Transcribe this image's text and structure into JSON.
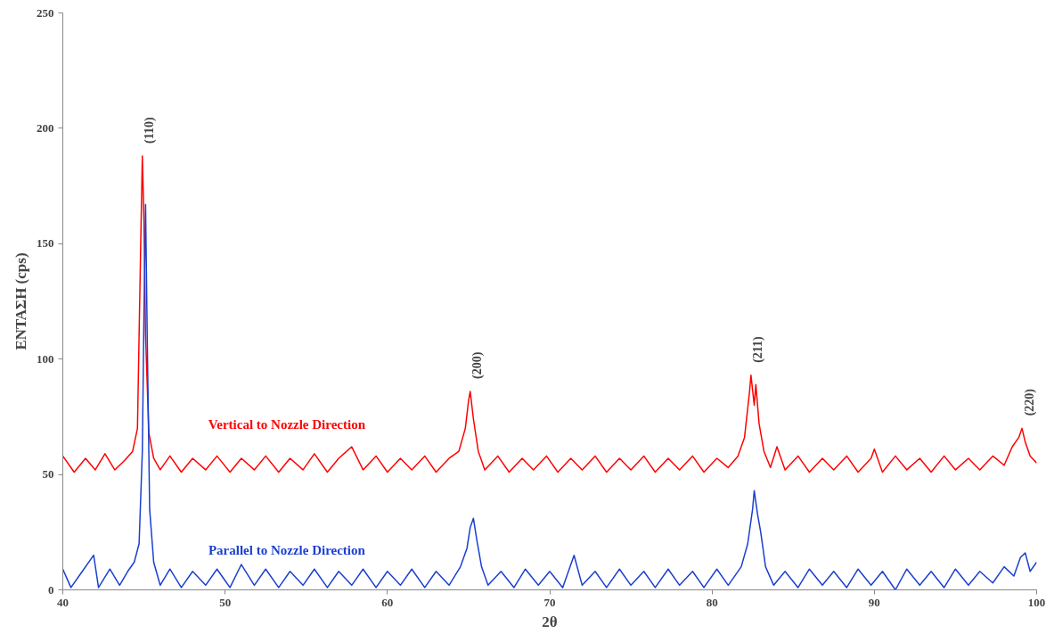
{
  "chart_data": {
    "type": "line",
    "xlabel": "2θ",
    "ylabel": "ΕΝΤΑΣΗ (cps)",
    "xlim": [
      40,
      100
    ],
    "ylim": [
      0,
      250
    ],
    "xticks": [
      40,
      50,
      60,
      70,
      80,
      90,
      100
    ],
    "yticks": [
      0,
      50,
      100,
      150,
      200,
      250
    ],
    "grid": false,
    "line_style": "solid",
    "marker": "none",
    "annotations": [
      {
        "text": "(110)",
        "x": 44.9,
        "y": 188
      },
      {
        "text": "(200)",
        "x": 65.1,
        "y": 86
      },
      {
        "text": "(211)",
        "x": 82.4,
        "y": 93
      },
      {
        "text": "(220)",
        "x": 99.1,
        "y": 70
      }
    ],
    "series": [
      {
        "name": "Vertical to Nozzle Direction",
        "color": "#ff0000",
        "x": [
          40,
          40.7,
          41.4,
          42,
          42.6,
          43.2,
          43.8,
          44.3,
          44.6,
          44.8,
          44.9,
          45.0,
          45.1,
          45.3,
          45.6,
          46,
          46.6,
          47.3,
          48,
          48.8,
          49.5,
          50.3,
          51,
          51.8,
          52.5,
          53.3,
          54,
          54.8,
          55.5,
          56.3,
          57,
          57.8,
          58.5,
          59.3,
          60,
          60.8,
          61.5,
          62.3,
          63,
          63.8,
          64.4,
          64.8,
          65.0,
          65.1,
          65.3,
          65.6,
          66,
          66.8,
          67.5,
          68.3,
          69,
          69.8,
          70.5,
          71.3,
          72,
          72.8,
          73.5,
          74.3,
          75,
          75.8,
          76.5,
          77.3,
          78,
          78.8,
          79.5,
          80.3,
          81,
          81.6,
          82,
          82.3,
          82.4,
          82.6,
          82.7,
          82.9,
          83.2,
          83.6,
          84,
          84.5,
          85.3,
          86,
          86.8,
          87.5,
          88.3,
          89,
          89.8,
          90,
          90.5,
          91.3,
          92,
          92.8,
          93.5,
          94.3,
          95,
          95.8,
          96.5,
          97.3,
          98,
          98.5,
          98.9,
          99.1,
          99.3,
          99.6,
          100
        ],
        "values": [
          58,
          51,
          57,
          52,
          59,
          52,
          56,
          60,
          70,
          150,
          188,
          160,
          110,
          68,
          57,
          52,
          58,
          51,
          57,
          52,
          58,
          51,
          57,
          52,
          58,
          51,
          57,
          52,
          59,
          51,
          57,
          62,
          52,
          58,
          51,
          57,
          52,
          58,
          51,
          57,
          60,
          70,
          82,
          86,
          74,
          60,
          52,
          58,
          51,
          57,
          52,
          58,
          51,
          57,
          52,
          58,
          51,
          57,
          52,
          58,
          51,
          57,
          52,
          58,
          51,
          57,
          53,
          58,
          66,
          85,
          93,
          80,
          89,
          72,
          60,
          53,
          62,
          52,
          58,
          51,
          57,
          52,
          58,
          51,
          57,
          61,
          51,
          58,
          52,
          57,
          51,
          58,
          52,
          57,
          52,
          58,
          54,
          62,
          66,
          70,
          64,
          58,
          55
        ]
      },
      {
        "name": "Parallel to Nozzle Direction",
        "color": "#1a3fd0",
        "x": [
          40,
          40.5,
          41.2,
          41.9,
          42.2,
          42.9,
          43.5,
          44,
          44.4,
          44.7,
          44.9,
          45.0,
          45.1,
          45.2,
          45.35,
          45.6,
          46,
          46.6,
          47.3,
          48,
          48.8,
          49.5,
          50.3,
          51,
          51.8,
          52.5,
          53.3,
          54,
          54.8,
          55.5,
          56.3,
          57,
          57.8,
          58.5,
          59.3,
          60,
          60.8,
          61.5,
          62.3,
          63,
          63.8,
          64.5,
          64.9,
          65.1,
          65.3,
          65.5,
          65.8,
          66.2,
          67,
          67.8,
          68.5,
          69.3,
          70,
          70.8,
          71.5,
          72,
          72.8,
          73.5,
          74.3,
          75,
          75.8,
          76.5,
          77.3,
          78,
          78.8,
          79.5,
          80.3,
          81,
          81.8,
          82.2,
          82.5,
          82.6,
          82.8,
          83,
          83.3,
          83.8,
          84.5,
          85.3,
          86,
          86.8,
          87.5,
          88.3,
          89,
          89.8,
          90.5,
          91.3,
          92,
          92.8,
          93.5,
          94.3,
          95,
          95.8,
          96.5,
          97.3,
          98,
          98.6,
          99,
          99.3,
          99.6,
          100
        ],
        "values": [
          9,
          1,
          8,
          15,
          1,
          9,
          2,
          8,
          12,
          20,
          60,
          120,
          167,
          110,
          35,
          12,
          2,
          9,
          1,
          8,
          2,
          9,
          1,
          11,
          2,
          9,
          1,
          8,
          2,
          9,
          1,
          8,
          2,
          9,
          1,
          8,
          2,
          9,
          1,
          8,
          2,
          10,
          18,
          27,
          31,
          22,
          10,
          2,
          8,
          1,
          9,
          2,
          8,
          1,
          15,
          2,
          8,
          1,
          9,
          2,
          8,
          1,
          9,
          2,
          8,
          1,
          9,
          2,
          10,
          20,
          35,
          43,
          33,
          25,
          10,
          2,
          8,
          1,
          9,
          2,
          8,
          1,
          9,
          2,
          8,
          0,
          9,
          2,
          8,
          1,
          9,
          2,
          8,
          3,
          10,
          6,
          14,
          16,
          8,
          12
        ]
      }
    ]
  }
}
